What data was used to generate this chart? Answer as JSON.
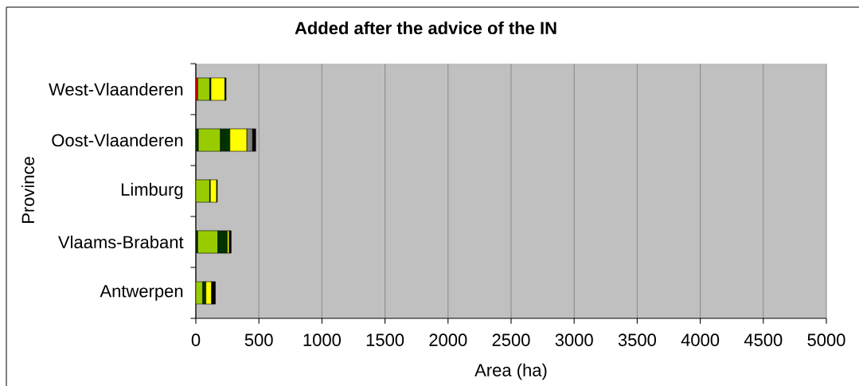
{
  "chart_data": {
    "type": "bar",
    "orientation": "horizontal",
    "stacked": true,
    "title": "Added after the advice of the IN",
    "xlabel": "Area (ha)",
    "ylabel": "Province",
    "categories": [
      "West-Vlaanderen",
      "Oost-Vlaanderen",
      "Limburg",
      "Vlaams-Brabant",
      "Antwerpen"
    ],
    "series": [
      {
        "color": "#ff0000",
        "values": [
          15,
          null,
          null,
          null,
          null
        ]
      },
      {
        "color": "#003300",
        "values": [
          null,
          20,
          null,
          15,
          null
        ]
      },
      {
        "color": "#99cc00",
        "values": [
          95,
          175,
          110,
          160,
          55
        ]
      },
      {
        "color": "#003300",
        "values": [
          10,
          75,
          5,
          75,
          25
        ]
      },
      {
        "color": "#ffff00",
        "values": [
          110,
          135,
          50,
          15,
          45
        ]
      },
      {
        "color": "#808080",
        "values": [
          null,
          45,
          null,
          null,
          null
        ]
      },
      {
        "color": "#000000",
        "values": [
          10,
          25,
          5,
          15,
          30
        ]
      }
    ],
    "xlim": [
      0,
      5000
    ],
    "xticks": [
      0,
      500,
      1000,
      1500,
      2000,
      2500,
      3000,
      3500,
      4000,
      4500,
      5000
    ],
    "grid": "x"
  }
}
